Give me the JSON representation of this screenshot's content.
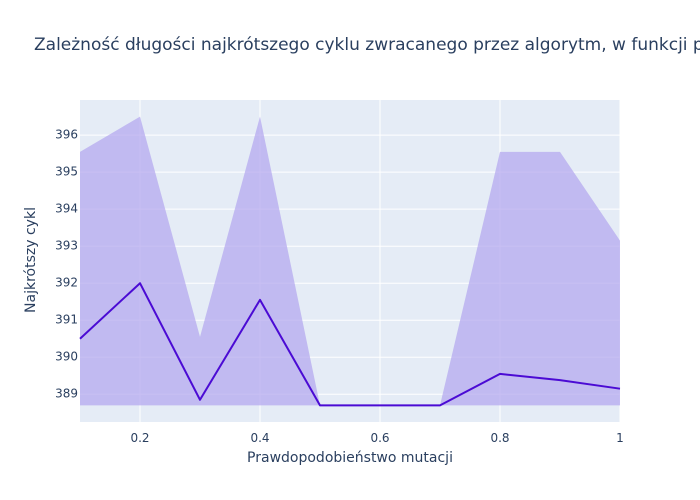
{
  "chart_data": {
    "type": "line",
    "title": "Zależność długości najkrótszego cyklu zwracanego przez algorytm,  w funkcji prawdopodobieństwa mutacji",
    "xlabel": "Prawdopodobieństwo mutacji",
    "ylabel": "Najkrótszy cykl",
    "xlim": [
      0.1,
      1.0
    ],
    "ylim": [
      388.25,
      396.95
    ],
    "x_ticks": [
      0.2,
      0.4,
      0.6,
      0.8,
      1.0
    ],
    "x_tick_labels": [
      "0.2",
      "0.4",
      "0.6",
      "0.8",
      "1"
    ],
    "y_ticks": [
      389,
      390,
      391,
      392,
      393,
      394,
      395,
      396
    ],
    "y_tick_labels": [
      "389",
      "390",
      "391",
      "392",
      "393",
      "394",
      "395",
      "396"
    ],
    "grid": true,
    "series": [
      {
        "x": [
          0.1,
          0.2,
          0.3,
          0.4,
          0.5,
          0.6,
          0.7,
          0.8,
          0.9,
          1.0
        ],
        "mean": [
          390.5,
          392.0,
          388.85,
          391.55,
          388.7,
          388.7,
          388.7,
          389.55,
          389.38,
          389.15
        ],
        "upper": [
          395.55,
          396.5,
          390.55,
          396.5,
          388.7,
          388.7,
          388.7,
          395.55,
          395.55,
          393.15
        ],
        "lower": [
          388.7,
          388.7,
          388.7,
          388.7,
          388.7,
          388.7,
          388.7,
          388.7,
          388.7,
          388.7
        ],
        "line_color": "#4b0bd4",
        "band_color": "#b3a6ef"
      }
    ],
    "plot_background": "#e5ecf6",
    "grid_color": "#ffffff"
  }
}
